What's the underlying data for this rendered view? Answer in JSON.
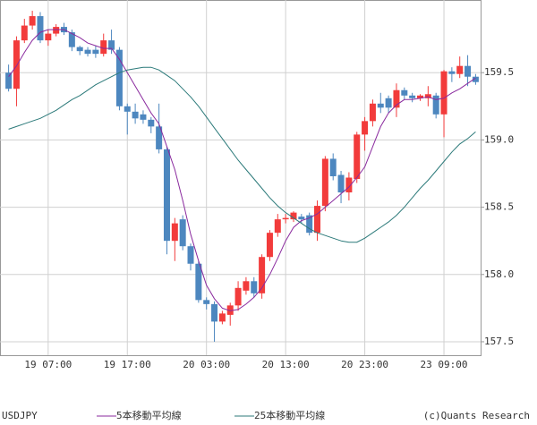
{
  "chart_data": {
    "type": "candlestick",
    "symbol": "USDJPY",
    "copyright": "(c)Quants Research",
    "categories": [
      null,
      null,
      null,
      null,
      null,
      "19 07:00",
      null,
      null,
      null,
      null,
      null,
      null,
      null,
      null,
      null,
      "19 17:00",
      null,
      null,
      null,
      null,
      null,
      null,
      null,
      null,
      null,
      "20 03:00",
      null,
      null,
      null,
      null,
      null,
      null,
      null,
      null,
      null,
      "20 13:00",
      null,
      null,
      null,
      null,
      null,
      null,
      null,
      null,
      null,
      "20 23:00",
      null,
      null,
      null,
      null,
      null,
      null,
      null,
      null,
      null,
      "23 09:00",
      null,
      null,
      null,
      null
    ],
    "up_color": "#f23b3b",
    "down_color": "#4d87bf",
    "open": [
      159.5,
      159.38,
      159.74,
      159.85,
      159.92,
      159.74,
      159.79,
      159.84,
      159.8,
      159.69,
      159.67,
      159.67,
      159.64,
      159.74,
      159.67,
      159.25,
      159.21,
      159.19,
      159.15,
      159.1,
      158.93,
      158.25,
      158.41,
      158.21,
      158.08,
      157.81,
      157.78,
      157.65,
      157.7,
      157.77,
      157.88,
      157.95,
      157.86,
      158.13,
      158.31,
      158.41,
      158.41,
      158.43,
      158.44,
      158.31,
      158.51,
      158.86,
      158.74,
      158.61,
      158.71,
      159.04,
      159.14,
      159.27,
      159.31,
      159.24,
      159.37,
      159.33,
      159.31,
      159.31,
      159.33,
      159.19,
      159.51,
      159.49,
      159.55,
      159.47
    ],
    "high": [
      159.56,
      159.77,
      159.9,
      159.96,
      159.95,
      159.82,
      159.86,
      159.87,
      159.82,
      159.7,
      159.69,
      159.7,
      159.79,
      159.82,
      159.69,
      159.27,
      159.27,
      159.22,
      159.17,
      159.27,
      158.95,
      158.42,
      158.44,
      158.23,
      158.1,
      157.83,
      157.8,
      157.73,
      157.79,
      157.95,
      157.98,
      157.98,
      158.15,
      158.33,
      158.45,
      158.45,
      158.47,
      158.45,
      158.46,
      158.55,
      158.88,
      158.9,
      158.77,
      158.76,
      159.06,
      159.17,
      159.3,
      159.35,
      159.33,
      159.42,
      159.39,
      159.35,
      159.34,
      159.4,
      159.35,
      159.52,
      159.54,
      159.62,
      159.63,
      159.49
    ],
    "low": [
      159.36,
      159.25,
      159.72,
      159.82,
      159.72,
      159.7,
      159.77,
      159.78,
      159.66,
      159.63,
      159.62,
      159.61,
      159.62,
      159.64,
      159.22,
      159.04,
      159.12,
      159.12,
      159.05,
      158.9,
      158.15,
      158.1,
      158.18,
      158.03,
      157.79,
      157.74,
      157.5,
      157.63,
      157.62,
      157.73,
      157.85,
      157.83,
      157.82,
      158.1,
      158.28,
      158.38,
      158.39,
      158.38,
      158.29,
      158.25,
      158.47,
      158.7,
      158.53,
      158.55,
      158.68,
      158.92,
      159.1,
      159.2,
      159.2,
      159.17,
      159.3,
      159.28,
      159.29,
      159.25,
      159.16,
      159.02,
      159.43,
      159.46,
      159.4,
      159.41
    ],
    "close": [
      159.38,
      159.74,
      159.85,
      159.92,
      159.74,
      159.79,
      159.84,
      159.8,
      159.69,
      159.66,
      159.64,
      159.64,
      159.74,
      159.67,
      159.25,
      159.21,
      159.16,
      159.15,
      159.1,
      158.93,
      158.25,
      158.38,
      158.21,
      158.08,
      157.81,
      157.78,
      157.65,
      157.71,
      157.77,
      157.9,
      157.95,
      157.86,
      158.13,
      158.31,
      158.41,
      158.42,
      158.46,
      158.41,
      158.31,
      158.51,
      158.86,
      158.73,
      158.61,
      158.72,
      159.04,
      159.14,
      159.27,
      159.24,
      159.24,
      159.37,
      159.33,
      159.31,
      159.33,
      159.34,
      159.19,
      159.51,
      159.49,
      159.55,
      159.47,
      159.43
    ],
    "series": [
      {
        "name": "5本移動平均線",
        "color": "#8a2a9e",
        "values": [
          159.47,
          159.55,
          159.65,
          159.74,
          159.8,
          159.82,
          159.82,
          159.82,
          159.79,
          159.76,
          159.72,
          159.7,
          159.68,
          159.68,
          159.6,
          159.5,
          159.4,
          159.3,
          159.2,
          159.12,
          158.95,
          158.78,
          158.55,
          158.3,
          158.1,
          157.92,
          157.82,
          157.75,
          157.73,
          157.74,
          157.78,
          157.83,
          157.9,
          158.0,
          158.12,
          158.25,
          158.35,
          158.4,
          158.42,
          158.45,
          158.5,
          158.55,
          158.6,
          158.65,
          158.72,
          158.8,
          158.95,
          159.1,
          159.2,
          159.26,
          159.3,
          159.3,
          159.31,
          159.32,
          159.3,
          159.31,
          159.35,
          159.38,
          159.42,
          159.46
        ]
      },
      {
        "name": "25本移動平均線",
        "color": "#2c7a7a",
        "values": [
          159.08,
          159.1,
          159.12,
          159.14,
          159.16,
          159.19,
          159.22,
          159.26,
          159.3,
          159.33,
          159.37,
          159.41,
          159.44,
          159.47,
          159.5,
          159.52,
          159.53,
          159.54,
          159.54,
          159.52,
          159.48,
          159.44,
          159.38,
          159.32,
          159.25,
          159.17,
          159.09,
          159.01,
          158.93,
          158.85,
          158.78,
          158.71,
          158.64,
          158.57,
          158.51,
          158.46,
          158.42,
          158.38,
          158.34,
          158.31,
          158.29,
          158.27,
          158.25,
          158.24,
          158.24,
          158.27,
          158.31,
          158.35,
          158.39,
          158.44,
          158.5,
          158.57,
          158.64,
          158.7,
          158.77,
          158.84,
          158.91,
          158.97,
          159.01,
          159.06
        ]
      }
    ],
    "ylim": [
      157.4,
      160.04
    ],
    "yticks": [
      157.5,
      {
        "value": 158.0,
        "label": "158.0"
      },
      158.5,
      {
        "value": 159.0,
        "label": "159.0"
      },
      159.5
    ],
    "grid": true
  }
}
